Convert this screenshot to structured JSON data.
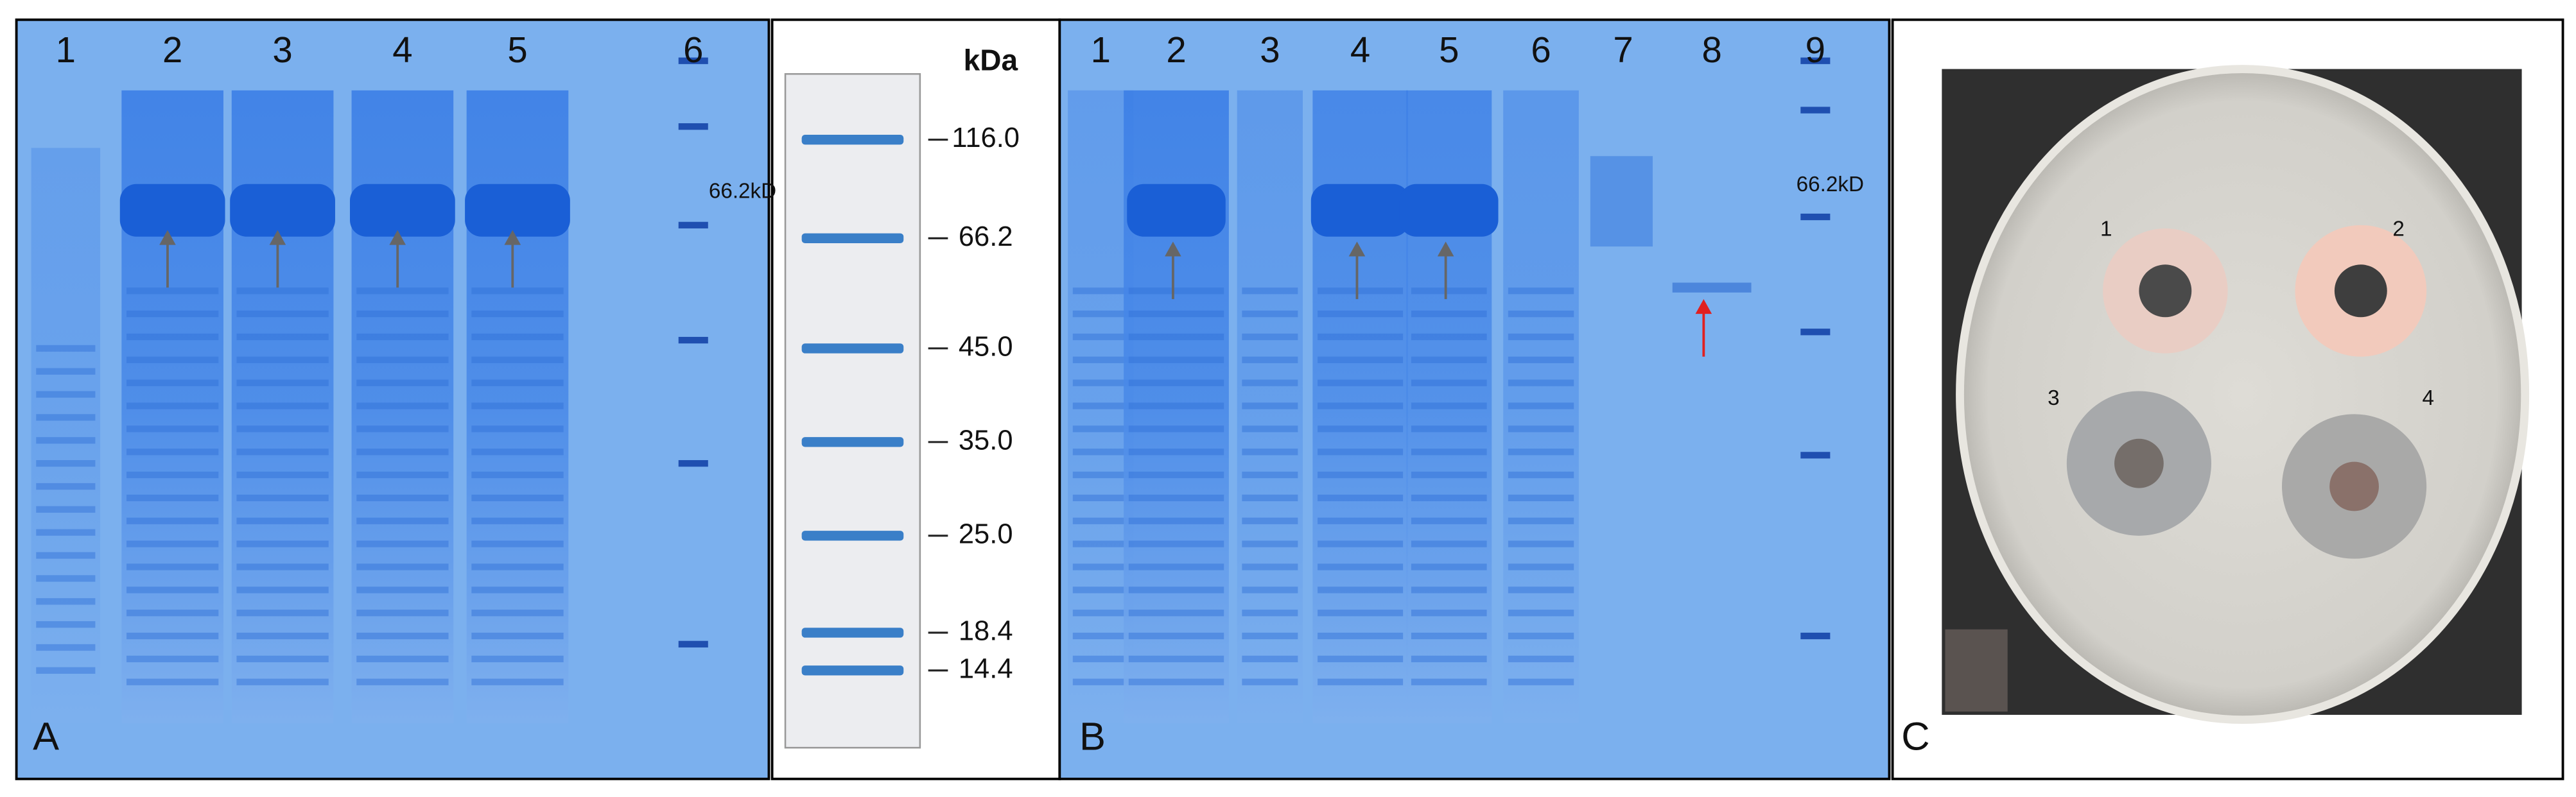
{
  "panel_a": {
    "label": "A",
    "lanes": [
      "1",
      "2",
      "3",
      "4",
      "5",
      "6"
    ],
    "marker_label": "66.2kD"
  },
  "ladder": {
    "unit": "kDa",
    "bands": [
      "116.0",
      "66.2",
      "45.0",
      "35.0",
      "25.0",
      "18.4",
      "14.4"
    ]
  },
  "panel_b": {
    "label": "B",
    "lanes": [
      "1",
      "2",
      "3",
      "4",
      "5",
      "6",
      "7",
      "8",
      "9"
    ],
    "marker_label": "66.2kD"
  },
  "panel_c": {
    "label": "C",
    "wells": [
      "1",
      "2",
      "3",
      "4"
    ]
  }
}
